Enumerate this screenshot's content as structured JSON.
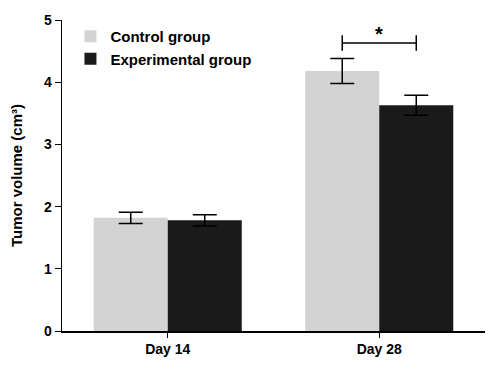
{
  "chart_data": {
    "type": "bar",
    "categories": [
      "Day 14",
      "Day 28"
    ],
    "series": [
      {
        "name": "Control group",
        "color": "#d3d3d3",
        "values": [
          1.82,
          4.18
        ],
        "errors": [
          0.09,
          0.2
        ]
      },
      {
        "name": "Experimental group",
        "color": "#1a1a1a",
        "values": [
          1.78,
          3.63
        ],
        "errors": [
          0.09,
          0.16
        ]
      }
    ],
    "y_label": "Tumor volume (cm³)",
    "ylim": [
      0,
      5
    ],
    "yticks": [
      0,
      1,
      2,
      3,
      4,
      5
    ],
    "grid": false,
    "legend": "upper left",
    "annotations": [
      {
        "text": "*",
        "category": "Day 28"
      }
    ]
  }
}
